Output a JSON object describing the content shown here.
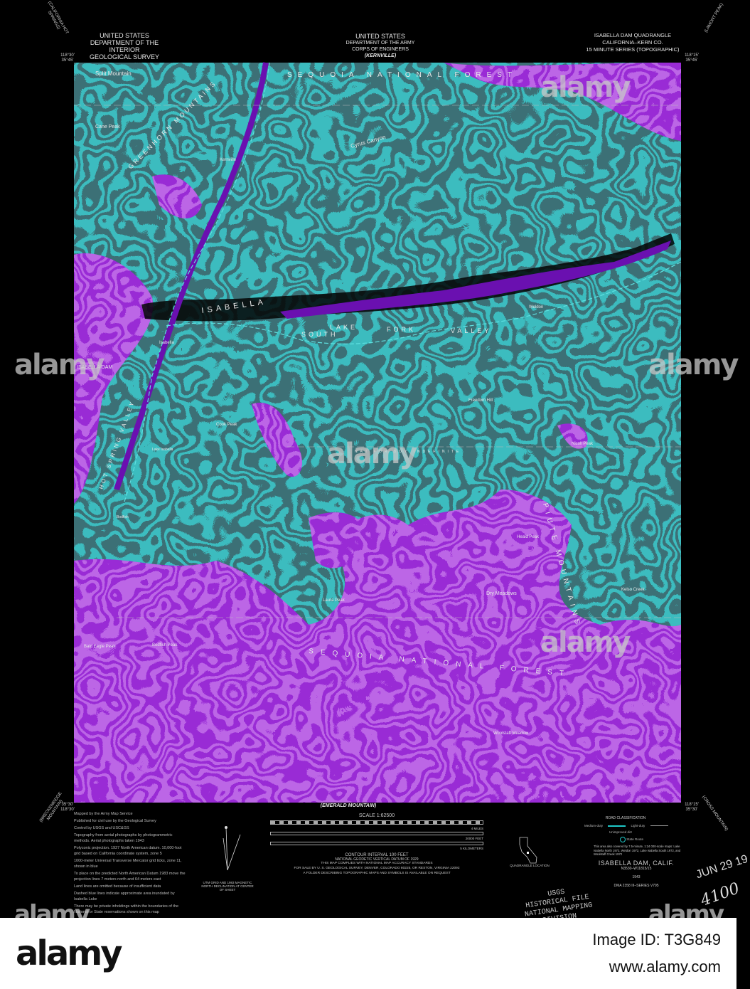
{
  "header": {
    "left": [
      "UNITED STATES",
      "DEPARTMENT OF THE INTERIOR",
      "GEOLOGICAL SURVEY"
    ],
    "center": [
      "UNITED STATES",
      "DEPARTMENT OF THE ARMY",
      "CORPS OF ENGINEERS"
    ],
    "center_adjoin": "(KERNVILLE)",
    "right": [
      "ISABELLA DAM QUADRANGLE",
      "CALIFORNIA–KERN CO.",
      "15 MINUTE SERIES (TOPOGRAPHIC)"
    ],
    "corner_nw": "(CALIFORNIA HOT SPRINGS)",
    "corner_ne": "(LAMONT PEAK)",
    "corner_sw": "(BRECKENRIDGE MOUNTAIN)",
    "corner_se": "(CROSS MOUNTAIN)",
    "coord_nw": "118°30' 35°45'",
    "coord_ne": "118°15' 35°45'",
    "coord_sw": "35°30' 118°30'",
    "coord_se": "118°15' 35°30'",
    "bottom_adjoin": "(EMERALD MOUNTAIN)"
  },
  "map": {
    "colors": {
      "background": "#000000",
      "contour": "#1fa7a8",
      "highland": "#8a1fd6",
      "water": "#6a10b0",
      "road": "#5fe0e0"
    },
    "labels": {
      "sequoia_top": "SEQUOIA NATIONAL FOREST",
      "split_mountain": "Split Mountain",
      "cane_peak": "Cane Peak",
      "greenhorn": "GREENHORN MOUNTAINS",
      "kernville": "Kernville",
      "cyrus_canyon": "Cyrus Canyon",
      "isabella_lake": "ISABELLA",
      "lake": "LAKE",
      "south": "SOUTH",
      "fork": "FORK",
      "valley": "VALLEY",
      "weldon": "Weldon",
      "isabella_town": "Isabella",
      "isabella_dam": "ISABELLA DAM",
      "cook_peak": "Cook Peak",
      "lake_isabella": "Lake Isabella",
      "hot_spring_valley": "HOT SPRING VALLEY",
      "bodfish": "Bodfish",
      "nicoll_peak": "Nicoll Peak",
      "heald_peak": "Heald Peak",
      "dry_meadows": "Dry Meadows",
      "laura_peak": "Laura Peak",
      "bodfish_peak": "Bodfish Peak",
      "bald_eagle_peak": "Bald Eagle Peak",
      "sequoia_bottom": "SEQUOIA NATIONAL FOREST",
      "woolstaff_meadow": "Woolstaff Meadow",
      "piute_mountains": "PIUTE MOUNTAINS",
      "kelso_creek": "Kelso Creek",
      "freedom_hill": "Freedom Hill",
      "nat_for_bdy": "NAT FOR BDY INDEFINITE"
    }
  },
  "notes": [
    "Mapped by the Army Map Service",
    "Published for civil use by the Geological Survey",
    "Control by USGS and USC&GS",
    "Topography from aerial photographs by photogrammetric methods. Aerial photographs taken 1943",
    "Polyconic projection. 1927 North American datum. 10,000-foot grid based on California coordinate system, zone 5",
    "1000-meter Universal Transverse Mercator grid ticks, zone 11, shown in blue",
    "To place on the predicted North American Datum 1983 move the projection lines 7 meters north and 64 meters east",
    "Land lines are omitted because of insufficient data",
    "Dashed blue lines indicate approximate area inundated by Isabella Lake",
    "There may be private inholdings within the boundaries of the National or State reservations shown on this map"
  ],
  "declination": "UTM GRID AND 1983 MAGNETIC NORTH DECLINATION AT CENTER OF SHEET",
  "scale": {
    "title": "SCALE 1:62500",
    "miles": "4 MILES",
    "feet": "20000 FEET",
    "km": "5 KILOMETERS",
    "contour": "CONTOUR INTERVAL 100 FEET",
    "datum": "NATIONAL GEODETIC VERTICAL DATUM OF 1929"
  },
  "compliance": [
    "THIS MAP COMPLIES WITH NATIONAL MAP ACCURACY STANDARDS",
    "FOR SALE BY U. S. GEOLOGICAL SURVEY, DENVER, COLORADO 80225, OR RESTON, VIRGINIA 22092",
    "A FOLDER DESCRIBING TOPOGRAPHIC MAPS AND SYMBOLS IS AVAILABLE ON REQUEST"
  ],
  "quadrangle_location": "QUADRANGLE LOCATION",
  "roads": {
    "title": "ROAD CLASSIFICATION",
    "medium": "Medium-duty",
    "light": "Light-duty",
    "unimproved": "Unimproved dirt",
    "state": "State Route"
  },
  "coverage_note": "This area also covered by 7.5-minute, 1:24 000-scale maps: Lake Isabella North 1972, Weldon 1972, Lake Isabella South 1972, and Woolstaff Creek 1972",
  "title_block": {
    "name": "ISABELLA DAM, CALIF.",
    "code": "N3530–W11815/15",
    "year": "1943",
    "series": "DMA 2358 III–SERIES V795"
  },
  "stamp": [
    "USGS",
    "HISTORICAL FILE",
    "NATIONAL MAPPING DIVISION"
  ],
  "date_stamp": "JUN 29 19",
  "handwriting": "4100",
  "watermark": "alamy",
  "footer": {
    "brand": "alamy",
    "image_id": "Image ID: T3G849",
    "site": "www.alamy.com"
  }
}
